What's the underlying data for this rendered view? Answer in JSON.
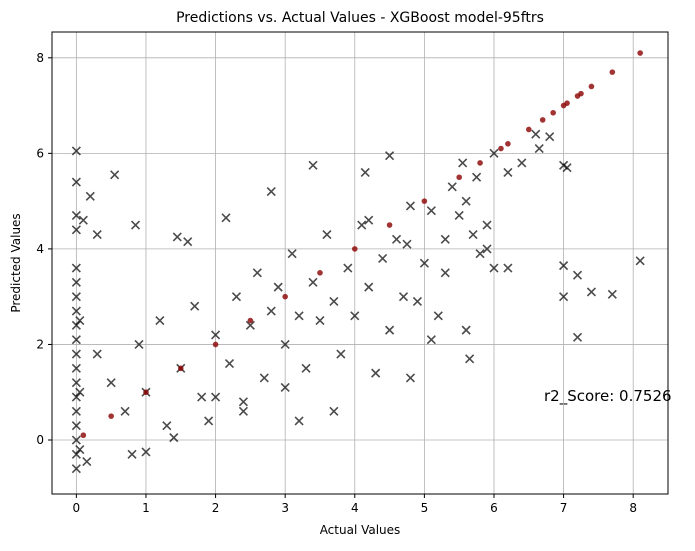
{
  "chart_data": {
    "type": "scatter",
    "title": "Predictions vs. Actual Values - XGBoost model-95ftrs",
    "x_label": "Actual Values",
    "y_label": "Predicted Values",
    "annotation": "r2_Score: 0.7526",
    "xlim": [
      -0.35,
      8.5
    ],
    "ylim": [
      -1.13,
      8.54
    ],
    "xticks": [
      0,
      1,
      2,
      3,
      4,
      5,
      6,
      7,
      8
    ],
    "yticks": [
      0,
      2,
      4,
      6,
      8
    ],
    "grid": true,
    "series": [
      {
        "color": "#000000",
        "marker": "x",
        "x": [
          0,
          0,
          0,
          0,
          0,
          0,
          0,
          0,
          0,
          0,
          0,
          0,
          0,
          0,
          0,
          0,
          0,
          0,
          0,
          0.05,
          0.05,
          0.05,
          0.1,
          0.2,
          0.3,
          0.15,
          0.55,
          0.85,
          1.45,
          1.6,
          2.15,
          2.8,
          3.4,
          4.15,
          4.5,
          4.75,
          0.3,
          0.5,
          0.7,
          0.9,
          1.0,
          1.2,
          1.3,
          1.5,
          1.7,
          1.8,
          2.0,
          2.2,
          2.3,
          2.4,
          2.5,
          2.6,
          2.7,
          2.8,
          2.9,
          3.0,
          3.1,
          3.2,
          3.3,
          3.4,
          3.5,
          3.6,
          3.7,
          3.8,
          3.9,
          4.0,
          4.1,
          4.2,
          4.3,
          4.4,
          4.5,
          4.6,
          4.7,
          4.8,
          4.9,
          5.0,
          5.1,
          5.2,
          5.3,
          5.4,
          5.5,
          5.55,
          5.6,
          5.65,
          5.7,
          5.75,
          5.8,
          5.9,
          6.0,
          6.2,
          6.2,
          6.4,
          6.6,
          6.65,
          6.8,
          7.0,
          7.05,
          7.0,
          7.0,
          7.2,
          7.2,
          7.4,
          7.7,
          8.1,
          4.8,
          3.7,
          3.2,
          2.4,
          1.9,
          0.8,
          1.0,
          1.4,
          2.0,
          3.0,
          5.1,
          5.6,
          5.3,
          4.2,
          5.9,
          6.0
        ],
        "values": [
          6.05,
          5.4,
          4.7,
          4.4,
          3.6,
          3.3,
          3.0,
          2.7,
          2.4,
          2.1,
          1.8,
          1.5,
          1.2,
          0.9,
          0.6,
          0.3,
          0,
          -0.3,
          -0.6,
          2.5,
          1.0,
          -0.2,
          4.6,
          5.1,
          4.3,
          -0.45,
          5.55,
          4.5,
          4.25,
          4.15,
          4.65,
          5.2,
          5.75,
          5.6,
          5.95,
          4.1,
          1.8,
          1.2,
          0.6,
          2.0,
          1.0,
          2.5,
          0.3,
          1.5,
          2.8,
          0.9,
          2.2,
          1.6,
          3.0,
          0.8,
          2.4,
          3.5,
          1.3,
          2.7,
          3.2,
          2.0,
          3.9,
          2.6,
          1.5,
          3.3,
          2.5,
          4.3,
          2.9,
          1.8,
          3.6,
          2.6,
          4.5,
          3.2,
          1.4,
          3.8,
          2.3,
          4.2,
          3.0,
          4.9,
          2.9,
          3.7,
          4.8,
          2.6,
          4.2,
          5.3,
          4.7,
          5.8,
          5.0,
          1.7,
          4.3,
          5.5,
          3.9,
          4.5,
          3.6,
          3.6,
          5.6,
          5.8,
          6.4,
          6.1,
          6.35,
          5.75,
          5.7,
          3.65,
          3.0,
          3.45,
          2.15,
          3.1,
          3.05,
          3.75,
          1.3,
          0.6,
          0.4,
          0.6,
          0.4,
          -0.3,
          -0.25,
          0.05,
          0.9,
          1.1,
          2.1,
          2.3,
          3.5,
          4.6,
          4.0,
          6.0
        ]
      },
      {
        "color": "#8b0000",
        "marker": "o",
        "x": [
          0.1,
          0.5,
          1,
          1.5,
          2,
          2.5,
          3,
          3.5,
          4,
          4.5,
          5,
          5.5,
          5.8,
          6.1,
          6.2,
          6.5,
          6.7,
          6.85,
          7.0,
          7.05,
          7.2,
          7.25,
          7.4,
          7.7,
          8.1
        ],
        "values": [
          0.1,
          0.5,
          1,
          1.5,
          2,
          2.5,
          3,
          3.5,
          4,
          4.5,
          5,
          5.5,
          5.8,
          6.1,
          6.2,
          6.5,
          6.7,
          6.85,
          7.0,
          7.05,
          7.2,
          7.25,
          7.4,
          7.7,
          8.1
        ]
      }
    ]
  }
}
